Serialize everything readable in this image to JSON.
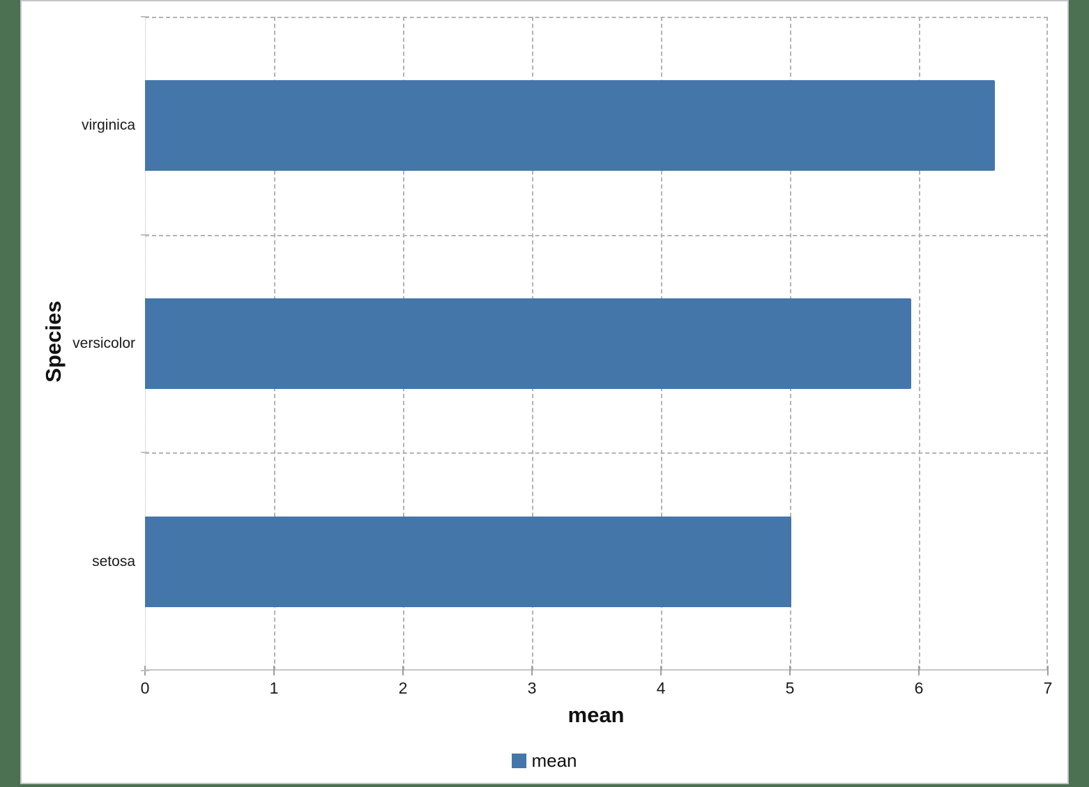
{
  "chart_data": {
    "type": "bar",
    "orientation": "horizontal",
    "title": "",
    "xlabel": "mean",
    "ylabel": "Species",
    "categories": [
      "setosa",
      "versicolor",
      "virginica"
    ],
    "series": [
      {
        "name": "mean",
        "values": [
          5.01,
          5.94,
          6.59
        ]
      }
    ],
    "display_order_top_to_bottom": [
      "virginica",
      "versicolor",
      "setosa"
    ],
    "xlim": [
      0,
      7
    ],
    "xticks": [
      0,
      1,
      2,
      3,
      4,
      5,
      6,
      7
    ],
    "grid": "dashed",
    "legend_position": "bottom"
  },
  "colors": {
    "bar": "#4576aa",
    "page_background": "#4b7052",
    "sheet": "#ffffff",
    "gridline": "#b3b3b3"
  },
  "legend": {
    "items": [
      {
        "label": "mean",
        "color": "#4576aa"
      }
    ]
  }
}
